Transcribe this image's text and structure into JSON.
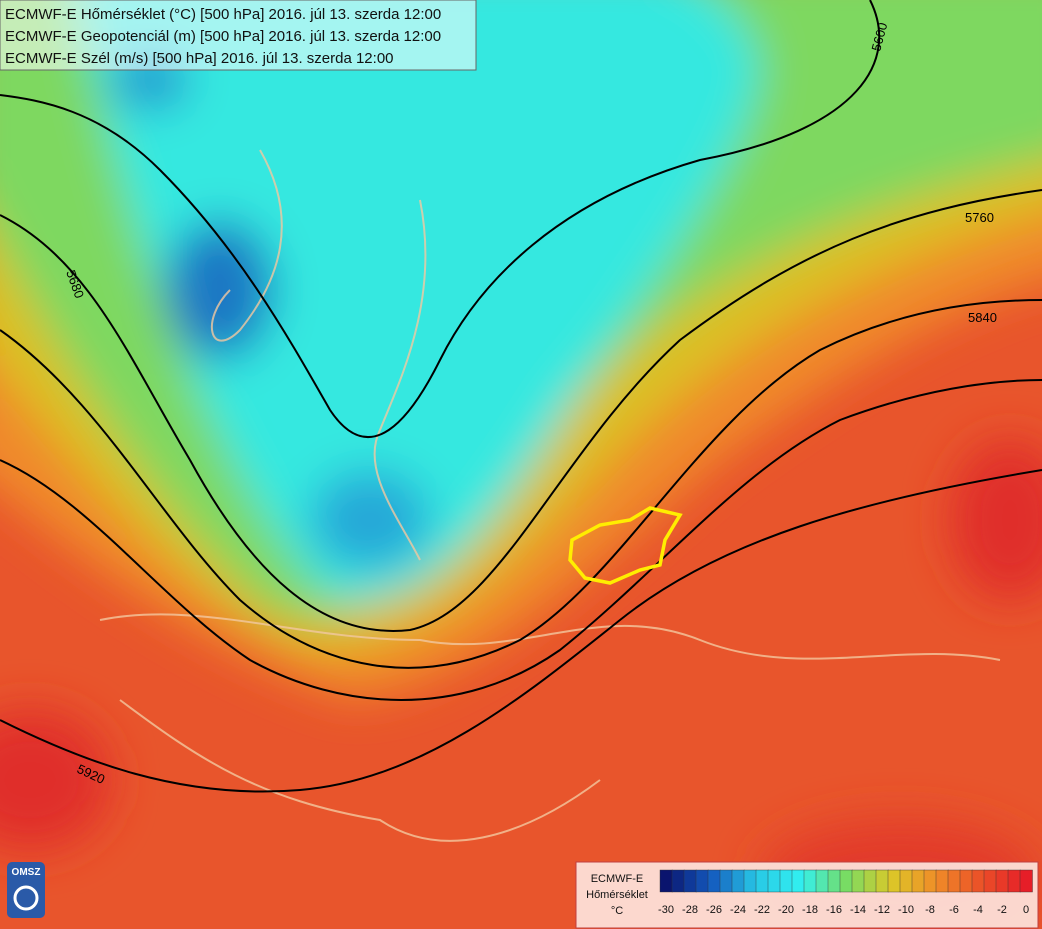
{
  "header": {
    "lines": [
      "ECMWF-E Hőmérséklet (°C) [500 hPa] 2016. júl 13. szerda 12:00",
      "ECMWF-E Geopotenciál (m) [500 hPa] 2016. júl 13. szerda 12:00",
      "ECMWF-E Szél (m/s) [500 hPa] 2016. júl 13. szerda 12:00"
    ]
  },
  "contours": [
    {
      "label": "5600"
    },
    {
      "label": "5760"
    },
    {
      "label": "5840"
    },
    {
      "label": "5680"
    },
    {
      "label": "5920"
    }
  ],
  "legend": {
    "title": "ECMWF-E",
    "subtitle": "Hőmérséklet",
    "unit": "°C",
    "ticks": [
      -30,
      -28,
      -26,
      -24,
      -22,
      -20,
      -18,
      -16,
      -14,
      -12,
      -10,
      -8,
      -6,
      -4,
      -2,
      0
    ]
  },
  "logo": {
    "text": "OMSZ"
  }
}
